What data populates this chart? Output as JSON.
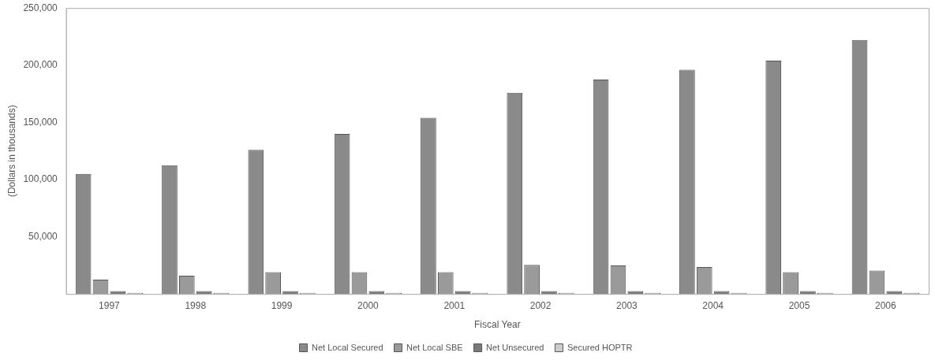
{
  "chart_data": {
    "type": "bar",
    "xlabel": "Fiscal Year",
    "ylabel": "(Dollars in thousands)",
    "categories": [
      "1997",
      "1998",
      "1999",
      "2000",
      "2001",
      "2002",
      "2003",
      "2004",
      "2005",
      "2006"
    ],
    "series": [
      {
        "name": "Net Local Secured",
        "color": "#8a8a8a",
        "values": [
          105000,
          112500,
          126000,
          140000,
          154000,
          176000,
          187500,
          196000,
          204000,
          222000
        ]
      },
      {
        "name": "Net Local SBE",
        "color": "#9a9a9a",
        "values": [
          12500,
          16000,
          19000,
          19000,
          19000,
          25500,
          25000,
          23500,
          19000,
          20500
        ]
      },
      {
        "name": "Net Unsecured",
        "color": "#7a7a7a",
        "values": [
          2500,
          2500,
          2500,
          2500,
          2500,
          2500,
          2500,
          2500,
          2500,
          2500
        ]
      },
      {
        "name": "Secured HOPTR",
        "color": "#cccccc",
        "values": [
          1000,
          1000,
          1000,
          1000,
          1000,
          1000,
          1000,
          1000,
          1000,
          1000
        ]
      }
    ],
    "ylim": [
      0,
      250000
    ],
    "yticks": [
      {
        "value": 50000,
        "label": "50,000"
      },
      {
        "value": 100000,
        "label": "100,000"
      },
      {
        "value": 150000,
        "label": "150,000"
      },
      {
        "value": 200000,
        "label": "200,000"
      },
      {
        "value": 250000,
        "label": "250,000"
      }
    ],
    "grid": false,
    "legend": "bottom"
  }
}
